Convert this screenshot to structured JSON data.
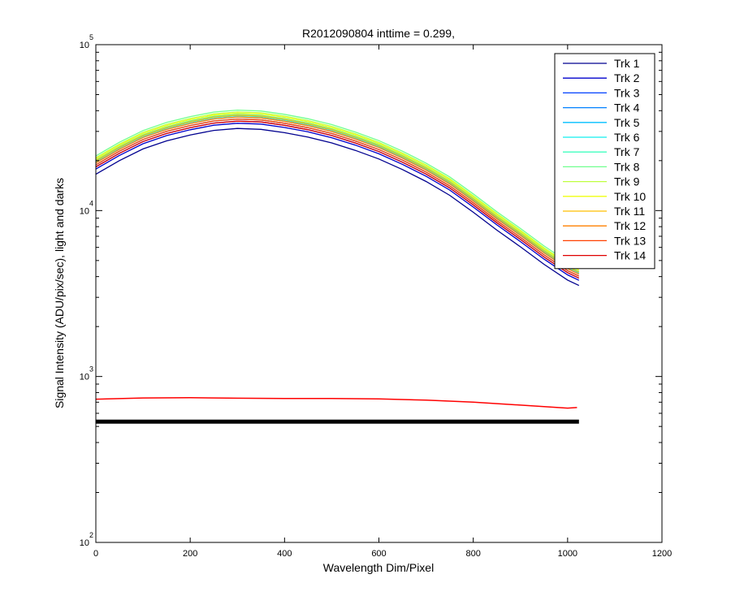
{
  "chart_data": {
    "type": "line",
    "title": "R2012090804 inttime = 0.299,",
    "xlabel": "Wavelength Dim/Pixel",
    "ylabel": "Signal Intensity (ADU/pix/sec), light and darks",
    "xlim": [
      0,
      1200
    ],
    "ylim": [
      100,
      100000
    ],
    "yscale": "log",
    "xticks": [
      0,
      200,
      400,
      600,
      800,
      1000,
      1200
    ],
    "xtick_labels": [
      "0",
      "200",
      "400",
      "600",
      "800",
      "1000",
      "1200"
    ],
    "yticks": [
      100,
      1000,
      10000,
      100000
    ],
    "ytick_labels": [
      {
        "base": "10",
        "exp": "2"
      },
      {
        "base": "10",
        "exp": "3"
      },
      {
        "base": "10",
        "exp": "4"
      },
      {
        "base": "10",
        "exp": "5"
      }
    ],
    "grid": false,
    "legend_position": "top-right",
    "shape_x": [
      0,
      50,
      100,
      150,
      200,
      250,
      300,
      350,
      400,
      450,
      500,
      550,
      600,
      650,
      700,
      750,
      800,
      850,
      900,
      950,
      1000,
      1024
    ],
    "base_shape": [
      17800,
      21500,
      25300,
      28300,
      30700,
      32700,
      33600,
      33200,
      31700,
      29800,
      27500,
      24800,
      22000,
      19000,
      16100,
      13300,
      10500,
      8200,
      6500,
      5100,
      4100,
      3800
    ],
    "series": [
      {
        "name": "Trk 1",
        "color": "#00008f",
        "scale": 0.93
      },
      {
        "name": "Trk 2",
        "color": "#0000cc",
        "scale": 1.0
      },
      {
        "name": "Trk 3",
        "color": "#0040ff",
        "scale": 1.03
      },
      {
        "name": "Trk 4",
        "color": "#0080ff",
        "scale": 1.06
      },
      {
        "name": "Trk 5",
        "color": "#00bfff",
        "scale": 1.09
      },
      {
        "name": "Trk 6",
        "color": "#10efef",
        "scale": 1.11
      },
      {
        "name": "Trk 7",
        "color": "#40ffbf",
        "scale": 1.13
      },
      {
        "name": "Trk 8",
        "color": "#70ff8f",
        "scale": 1.2
      },
      {
        "name": "Trk 9",
        "color": "#bfff40",
        "scale": 1.17
      },
      {
        "name": "Trk 10",
        "color": "#efff10",
        "scale": 1.15
      },
      {
        "name": "Trk 11",
        "color": "#ffbf00",
        "scale": 1.12
      },
      {
        "name": "Trk 12",
        "color": "#ff8000",
        "scale": 1.09
      },
      {
        "name": "Trk 13",
        "color": "#ff4000",
        "scale": 1.06
      },
      {
        "name": "Trk 14",
        "color": "#df0000",
        "scale": 1.03
      }
    ],
    "dark_series": [
      {
        "color": "#ff0000",
        "x": [
          0,
          100,
          200,
          300,
          400,
          500,
          600,
          700,
          800,
          900,
          1000,
          1020
        ],
        "y": [
          730,
          742,
          745,
          740,
          737,
          737,
          733,
          720,
          700,
          672,
          645,
          650
        ]
      },
      {
        "color": "#000000",
        "x": [
          0,
          1024
        ],
        "y": [
          535,
          535
        ]
      }
    ]
  }
}
